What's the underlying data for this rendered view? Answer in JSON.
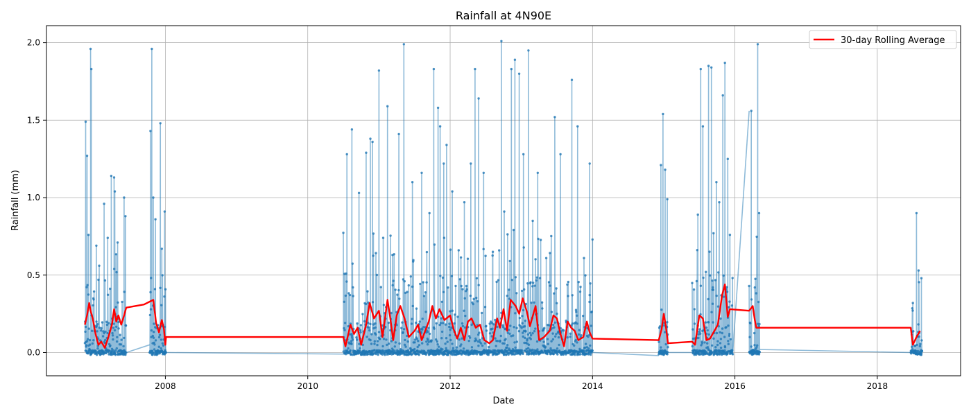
{
  "chart_data": {
    "type": "line",
    "title": "Rainfall at 4N90E",
    "xlabel": "Date",
    "ylabel": "Rainfall (mm)",
    "xlim": [
      2006.33,
      2019.17
    ],
    "ylim": [
      -0.15,
      2.11
    ],
    "xticks": [
      2008,
      2010,
      2012,
      2014,
      2016,
      2018
    ],
    "xtick_labels": [
      "2008",
      "2010",
      "2012",
      "2014",
      "2016",
      "2018"
    ],
    "yticks": [
      0.0,
      0.5,
      1.0,
      1.5,
      2.0
    ],
    "ytick_labels": [
      "0.0",
      "0.5",
      "1.0",
      "1.5",
      "2.0"
    ],
    "grid": true,
    "legend": {
      "location": "top-right",
      "entries": [
        "30-day Rolling Average"
      ]
    },
    "series": [
      {
        "name": "Daily Rainfall",
        "color": "#1f77b4",
        "style": "line+markers",
        "in_legend": false,
        "segments": [
          {
            "start": 2006.87,
            "end": 2007.45,
            "baseline": 0.0,
            "peaks": [
              [
                2006.88,
                1.49
              ],
              [
                2006.9,
                1.27
              ],
              [
                2006.92,
                0.76
              ],
              [
                2006.95,
                1.96
              ],
              [
                2006.96,
                1.83
              ],
              [
                2006.99,
                0.35
              ],
              [
                2007.03,
                0.69
              ],
              [
                2007.06,
                0.47
              ],
              [
                2007.14,
                0.96
              ],
              [
                2007.19,
                0.74
              ],
              [
                2007.24,
                1.14
              ],
              [
                2007.28,
                1.13
              ],
              [
                2007.29,
                1.04
              ],
              [
                2007.33,
                0.71
              ],
              [
                2007.42,
                1.0
              ],
              [
                2007.44,
                0.88
              ]
            ]
          },
          {
            "start": 2007.78,
            "end": 2008.01,
            "baseline": 0.0,
            "peaks": [
              [
                2007.79,
                1.43
              ],
              [
                2007.81,
                1.96
              ],
              [
                2007.83,
                1.0
              ],
              [
                2007.86,
                0.86
              ],
              [
                2007.93,
                1.48
              ],
              [
                2007.95,
                0.67
              ],
              [
                2007.99,
                0.91
              ]
            ]
          },
          {
            "start": 2010.5,
            "end": 2014.0,
            "baseline": 0.0,
            "peaks": [
              [
                2010.55,
                1.28
              ],
              [
                2010.62,
                1.44
              ],
              [
                2010.72,
                1.03
              ],
              [
                2010.82,
                1.29
              ],
              [
                2010.88,
                1.38
              ],
              [
                2010.91,
                1.36
              ],
              [
                2011.0,
                1.82
              ],
              [
                2011.06,
                0.74
              ],
              [
                2011.12,
                1.59
              ],
              [
                2011.19,
                0.63
              ],
              [
                2011.28,
                1.41
              ],
              [
                2011.35,
                1.99
              ],
              [
                2011.47,
                1.1
              ],
              [
                2011.6,
                1.16
              ],
              [
                2011.71,
                0.9
              ],
              [
                2011.77,
                1.83
              ],
              [
                2011.83,
                1.58
              ],
              [
                2011.86,
                1.46
              ],
              [
                2011.91,
                1.22
              ],
              [
                2011.95,
                1.34
              ],
              [
                2012.03,
                1.04
              ],
              [
                2012.12,
                0.66
              ],
              [
                2012.2,
                0.97
              ],
              [
                2012.29,
                1.22
              ],
              [
                2012.35,
                1.83
              ],
              [
                2012.4,
                1.64
              ],
              [
                2012.47,
                1.16
              ],
              [
                2012.6,
                0.65
              ],
              [
                2012.72,
                2.01
              ],
              [
                2012.76,
                0.91
              ],
              [
                2012.86,
                1.83
              ],
              [
                2012.91,
                1.89
              ],
              [
                2012.97,
                1.8
              ],
              [
                2013.03,
                1.28
              ],
              [
                2013.1,
                1.95
              ],
              [
                2013.16,
                0.85
              ],
              [
                2013.23,
                1.16
              ],
              [
                2013.35,
                0.61
              ],
              [
                2013.47,
                1.52
              ],
              [
                2013.55,
                1.28
              ],
              [
                2013.71,
                1.76
              ],
              [
                2013.79,
                1.46
              ],
              [
                2013.88,
                0.61
              ],
              [
                2013.96,
                1.22
              ],
              [
                2014.0,
                0.73
              ]
            ]
          },
          {
            "start": 2014.93,
            "end": 2015.06,
            "baseline": 0.0,
            "peaks": [
              [
                2014.96,
                1.21
              ],
              [
                2014.99,
                1.54
              ],
              [
                2015.02,
                1.18
              ],
              [
                2015.05,
                0.99
              ]
            ]
          },
          {
            "start": 2015.4,
            "end": 2015.97,
            "baseline": 0.0,
            "peaks": [
              [
                2015.43,
                0.28
              ],
              [
                2015.48,
                0.89
              ],
              [
                2015.52,
                1.83
              ],
              [
                2015.55,
                1.46
              ],
              [
                2015.63,
                1.85
              ],
              [
                2015.67,
                1.84
              ],
              [
                2015.7,
                0.77
              ],
              [
                2015.74,
                1.1
              ],
              [
                2015.78,
                0.97
              ],
              [
                2015.83,
                1.66
              ],
              [
                2015.86,
                1.87
              ],
              [
                2015.9,
                1.25
              ],
              [
                2015.93,
                0.76
              ]
            ]
          },
          {
            "start": 2016.2,
            "end": 2016.35,
            "baseline": 0.0,
            "peaks": [
              [
                2016.23,
                1.56
              ],
              [
                2016.28,
                0.42
              ],
              [
                2016.32,
                1.99
              ],
              [
                2016.34,
                0.9
              ]
            ]
          },
          {
            "start": 2018.47,
            "end": 2018.63,
            "baseline": 0.0,
            "peaks": [
              [
                2018.5,
                0.32
              ],
              [
                2018.55,
                0.9
              ],
              [
                2018.58,
                0.53
              ],
              [
                2018.62,
                0.48
              ]
            ]
          }
        ],
        "bridges": [
          [
            2007.45,
            0.0,
            2007.78,
            0.05
          ],
          [
            2008.01,
            0.0,
            2010.5,
            -0.01
          ],
          [
            2014.0,
            0.0,
            2014.93,
            -0.02
          ],
          [
            2015.06,
            0.0,
            2015.4,
            0.0
          ],
          [
            2015.97,
            0.0,
            2016.2,
            1.56
          ],
          [
            2016.35,
            0.02,
            2018.47,
            0.0
          ]
        ]
      },
      {
        "name": "30-day Rolling Average",
        "color": "#ff0000",
        "style": "line",
        "in_legend": true,
        "points": [
          [
            2006.87,
            0.18
          ],
          [
            2006.9,
            0.24
          ],
          [
            2006.93,
            0.32
          ],
          [
            2006.95,
            0.27
          ],
          [
            2006.98,
            0.22
          ],
          [
            2007.02,
            0.12
          ],
          [
            2007.06,
            0.05
          ],
          [
            2007.1,
            0.07
          ],
          [
            2007.15,
            0.03
          ],
          [
            2007.2,
            0.1
          ],
          [
            2007.25,
            0.18
          ],
          [
            2007.28,
            0.28
          ],
          [
            2007.31,
            0.2
          ],
          [
            2007.34,
            0.24
          ],
          [
            2007.38,
            0.18
          ],
          [
            2007.42,
            0.24
          ],
          [
            2007.45,
            0.29
          ],
          [
            2007.7,
            0.31
          ],
          [
            2007.83,
            0.34
          ],
          [
            2007.87,
            0.19
          ],
          [
            2007.91,
            0.13
          ],
          [
            2007.95,
            0.21
          ],
          [
            2007.98,
            0.15
          ],
          [
            2008.0,
            0.05
          ],
          [
            2008.01,
            0.1
          ],
          [
            2010.5,
            0.1
          ],
          [
            2010.53,
            0.04
          ],
          [
            2010.6,
            0.18
          ],
          [
            2010.65,
            0.12
          ],
          [
            2010.7,
            0.16
          ],
          [
            2010.75,
            0.05
          ],
          [
            2010.82,
            0.18
          ],
          [
            2010.87,
            0.32
          ],
          [
            2010.93,
            0.22
          ],
          [
            2011.0,
            0.27
          ],
          [
            2011.05,
            0.1
          ],
          [
            2011.12,
            0.34
          ],
          [
            2011.16,
            0.22
          ],
          [
            2011.2,
            0.08
          ],
          [
            2011.25,
            0.24
          ],
          [
            2011.3,
            0.3
          ],
          [
            2011.36,
            0.22
          ],
          [
            2011.42,
            0.1
          ],
          [
            2011.5,
            0.14
          ],
          [
            2011.55,
            0.18
          ],
          [
            2011.6,
            0.08
          ],
          [
            2011.7,
            0.2
          ],
          [
            2011.75,
            0.3
          ],
          [
            2011.8,
            0.22
          ],
          [
            2011.85,
            0.28
          ],
          [
            2011.92,
            0.21
          ],
          [
            2012.0,
            0.24
          ],
          [
            2012.05,
            0.15
          ],
          [
            2012.1,
            0.09
          ],
          [
            2012.15,
            0.16
          ],
          [
            2012.2,
            0.08
          ],
          [
            2012.25,
            0.2
          ],
          [
            2012.3,
            0.22
          ],
          [
            2012.36,
            0.16
          ],
          [
            2012.42,
            0.18
          ],
          [
            2012.48,
            0.08
          ],
          [
            2012.55,
            0.06
          ],
          [
            2012.6,
            0.08
          ],
          [
            2012.66,
            0.22
          ],
          [
            2012.7,
            0.16
          ],
          [
            2012.75,
            0.28
          ],
          [
            2012.8,
            0.14
          ],
          [
            2012.85,
            0.34
          ],
          [
            2012.92,
            0.3
          ],
          [
            2012.97,
            0.25
          ],
          [
            2013.02,
            0.35
          ],
          [
            2013.08,
            0.26
          ],
          [
            2013.12,
            0.17
          ],
          [
            2013.2,
            0.3
          ],
          [
            2013.25,
            0.08
          ],
          [
            2013.32,
            0.1
          ],
          [
            2013.4,
            0.14
          ],
          [
            2013.45,
            0.24
          ],
          [
            2013.5,
            0.22
          ],
          [
            2013.55,
            0.12
          ],
          [
            2013.6,
            0.04
          ],
          [
            2013.65,
            0.2
          ],
          [
            2013.7,
            0.16
          ],
          [
            2013.75,
            0.14
          ],
          [
            2013.8,
            0.08
          ],
          [
            2013.87,
            0.1
          ],
          [
            2013.92,
            0.2
          ],
          [
            2013.96,
            0.13
          ],
          [
            2014.0,
            0.09
          ],
          [
            2014.93,
            0.08
          ],
          [
            2014.97,
            0.15
          ],
          [
            2015.0,
            0.25
          ],
          [
            2015.03,
            0.17
          ],
          [
            2015.06,
            0.06
          ],
          [
            2015.4,
            0.07
          ],
          [
            2015.44,
            0.05
          ],
          [
            2015.5,
            0.24
          ],
          [
            2015.55,
            0.22
          ],
          [
            2015.6,
            0.08
          ],
          [
            2015.65,
            0.09
          ],
          [
            2015.7,
            0.13
          ],
          [
            2015.76,
            0.18
          ],
          [
            2015.82,
            0.37
          ],
          [
            2015.86,
            0.44
          ],
          [
            2015.9,
            0.23
          ],
          [
            2015.93,
            0.28
          ],
          [
            2016.2,
            0.27
          ],
          [
            2016.25,
            0.3
          ],
          [
            2016.28,
            0.21
          ],
          [
            2016.3,
            0.16
          ],
          [
            2018.47,
            0.16
          ],
          [
            2018.5,
            0.05
          ],
          [
            2018.55,
            0.1
          ],
          [
            2018.6,
            0.14
          ]
        ]
      }
    ]
  }
}
